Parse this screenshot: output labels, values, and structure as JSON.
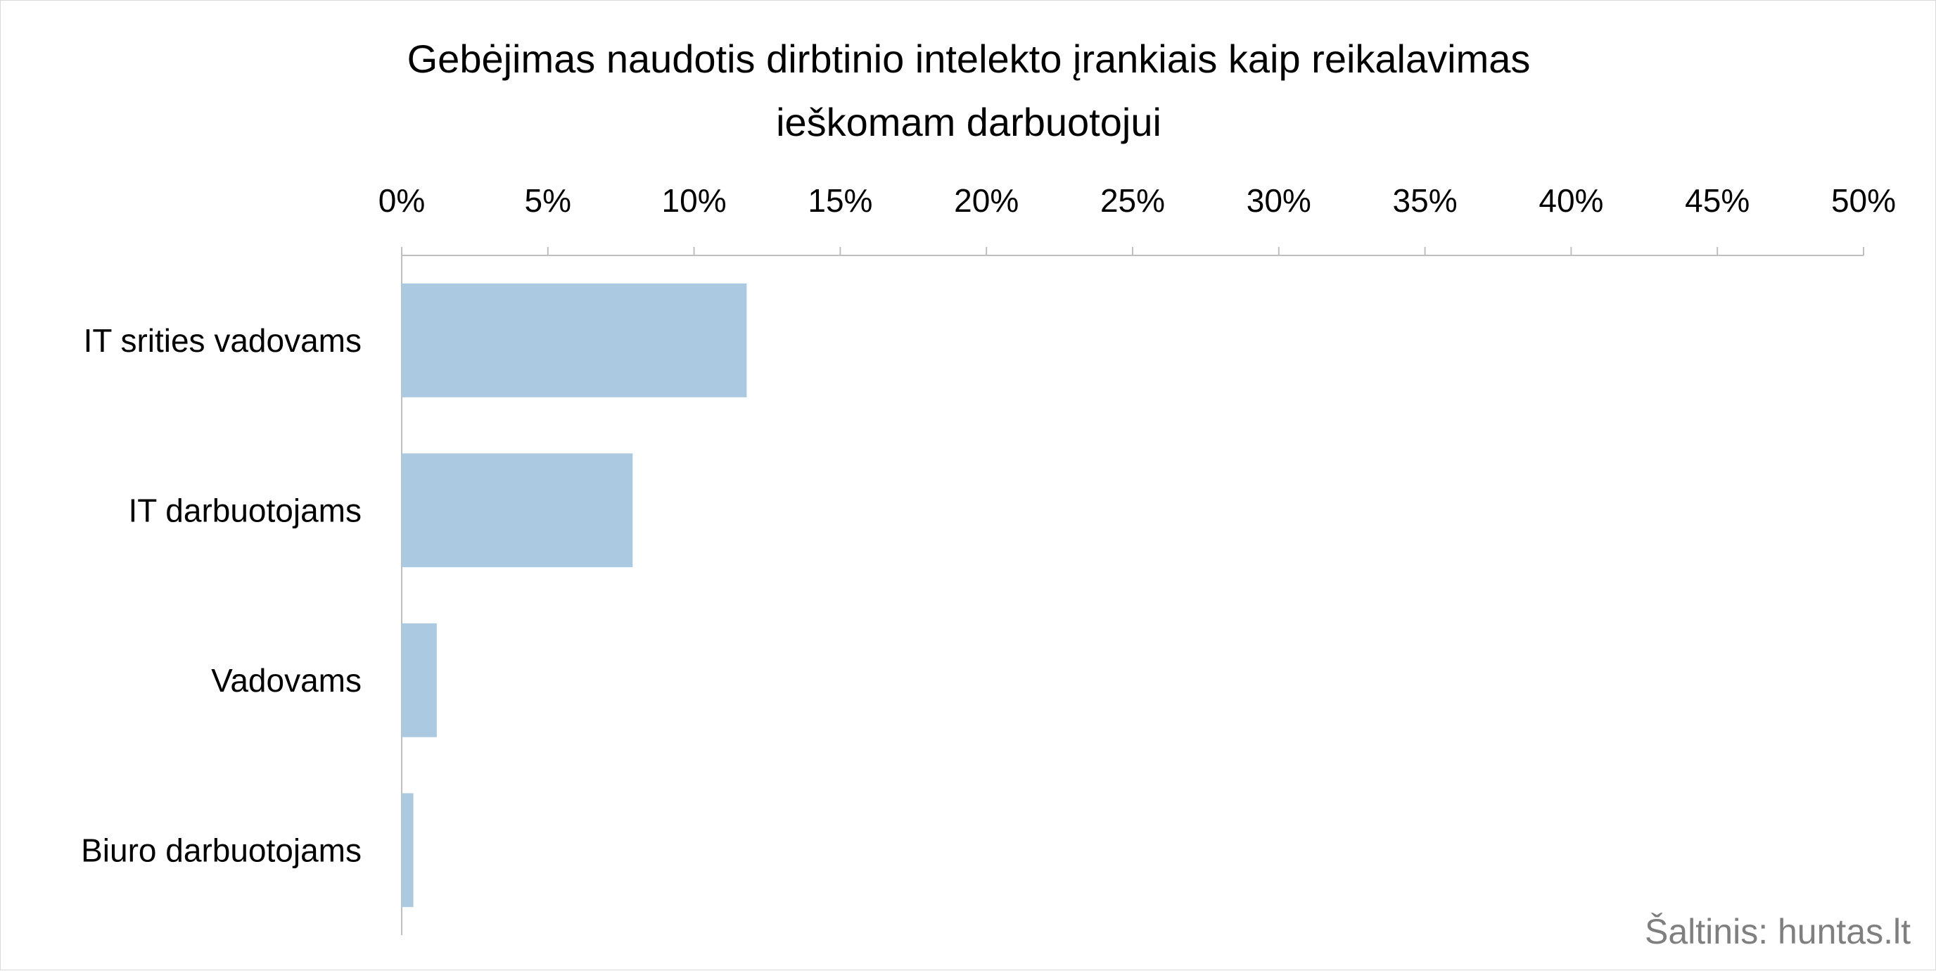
{
  "chart_data": {
    "type": "bar",
    "orientation": "horizontal",
    "title_lines": [
      "Gebėjimas naudotis dirbtinio intelekto įrankiais kaip reikalavimas",
      "ieškomam darbuotojui"
    ],
    "categories": [
      "IT srities vadovams",
      "IT darbuotojams",
      "Vadovams",
      "Biuro darbuotojams"
    ],
    "values": [
      11.8,
      7.9,
      1.2,
      0.4
    ],
    "xlim": [
      0,
      50
    ],
    "x_ticks": [
      0,
      5,
      10,
      15,
      20,
      25,
      30,
      35,
      40,
      45,
      50
    ],
    "x_tick_labels": [
      "0%",
      "5%",
      "10%",
      "15%",
      "20%",
      "25%",
      "30%",
      "35%",
      "40%",
      "45%",
      "50%"
    ],
    "x_axis_position": "top",
    "grid": false,
    "bar_color": "#abcae1",
    "source": "Šaltinis: huntas.lt"
  }
}
